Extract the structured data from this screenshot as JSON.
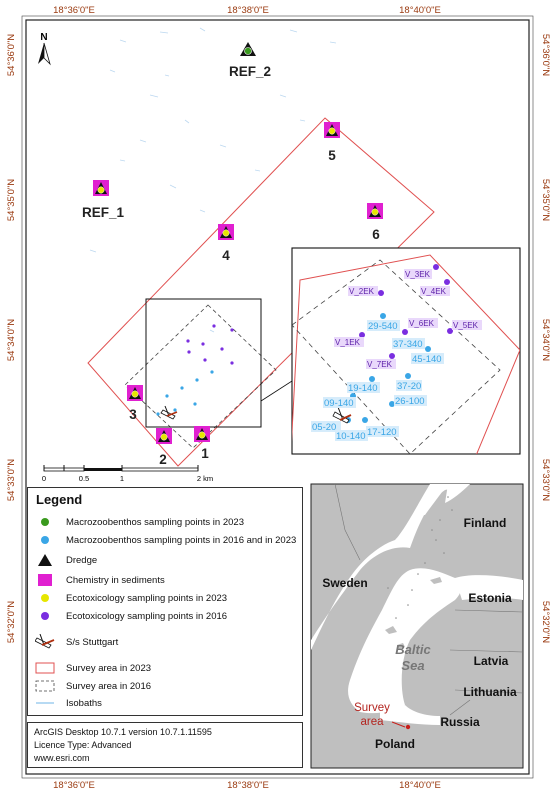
{
  "coords": {
    "top": [
      "18°36'0\"E",
      "18°38'0\"E",
      "18°40'0\"E"
    ],
    "bottom": [
      "18°36'0\"E",
      "18°38'0\"E",
      "18°40'0\"E"
    ],
    "left": [
      "54°36'0\"N",
      "54°35'0\"N",
      "54°34'0\"N",
      "54°33'0\"N",
      "54°32'0\"N"
    ],
    "right": [
      "54°36'0\"N",
      "54°35'0\"N",
      "54°34'0\"N",
      "54°33'0\"N",
      "54°32'0\"N"
    ]
  },
  "north": "N",
  "stations": {
    "ref2": "REF_2",
    "ref1": "REF_1",
    "s1": "1",
    "s2": "2",
    "s3": "3",
    "s4": "4",
    "s5": "5",
    "s6": "6"
  },
  "inset_labels": {
    "v3ek": "V_3EK",
    "v4ek": "V_4EK",
    "v2ek": "V_2EK",
    "v6ek": "V_6EK",
    "v5ek": "V_5EK",
    "v1ek": "V_1EK",
    "v7ek": "V_7EK",
    "p29540": "29-540",
    "p37340": "37-340",
    "p45140": "45-140",
    "p19140": "19-140",
    "p3720": "37-20",
    "p09140": "09-140",
    "p26100": "26-100",
    "p0520": "05-20",
    "p10140": "10-140",
    "p17120": "17-120"
  },
  "scale_bar": {
    "ticks": [
      "0",
      "0.5",
      "1",
      "2 km"
    ]
  },
  "legend": {
    "title": "Legend",
    "items": [
      {
        "label": "Macrozoobenthos sampling points in 2023",
        "icon": "green-dot"
      },
      {
        "label": "Macrozoobenthos sampling points in 2016 and in 2023",
        "icon": "blue-dot"
      },
      {
        "label": "Dredge",
        "icon": "black-triangle"
      },
      {
        "label": "Chemistry in sediments",
        "icon": "magenta-square"
      },
      {
        "label": "Ecotoxicology sampling points in 2023",
        "icon": "yellow-dot"
      },
      {
        "label": "Ecotoxicology sampling points in 2016",
        "icon": "purple-dot"
      },
      {
        "label": "S/s Stuttgart",
        "icon": "shipwreck"
      },
      {
        "label": "Survey area in 2023",
        "icon": "red-rect"
      },
      {
        "label": "Survey area in 2016",
        "icon": "dashed-rect"
      },
      {
        "label": "Isobaths",
        "icon": "blue-line"
      }
    ]
  },
  "info": {
    "line1": "ArcGIS Desktop 10.7.1 version 10.7.1.11595",
    "line2": "Licence Type: Advanced",
    "line3": "www.esri.com"
  },
  "overview": {
    "finland": "Finland",
    "sweden": "Sweden",
    "estonia": "Estonia",
    "latvia": "Latvia",
    "lithuania": "Lithuania",
    "russia": "Russia",
    "poland": "Poland",
    "baltic1": "Baltic",
    "baltic2": "Sea",
    "survey1": "Survey",
    "survey2": "area"
  },
  "colors": {
    "green": "#3a9a1e",
    "blue": "#3aa6e6",
    "yellow": "#e6e600",
    "purple": "#7a2ee0",
    "magenta": "#e020d0",
    "survey_red": "#e05050",
    "coord": "#9a3a10",
    "label_blue": "#5ab4e8"
  }
}
